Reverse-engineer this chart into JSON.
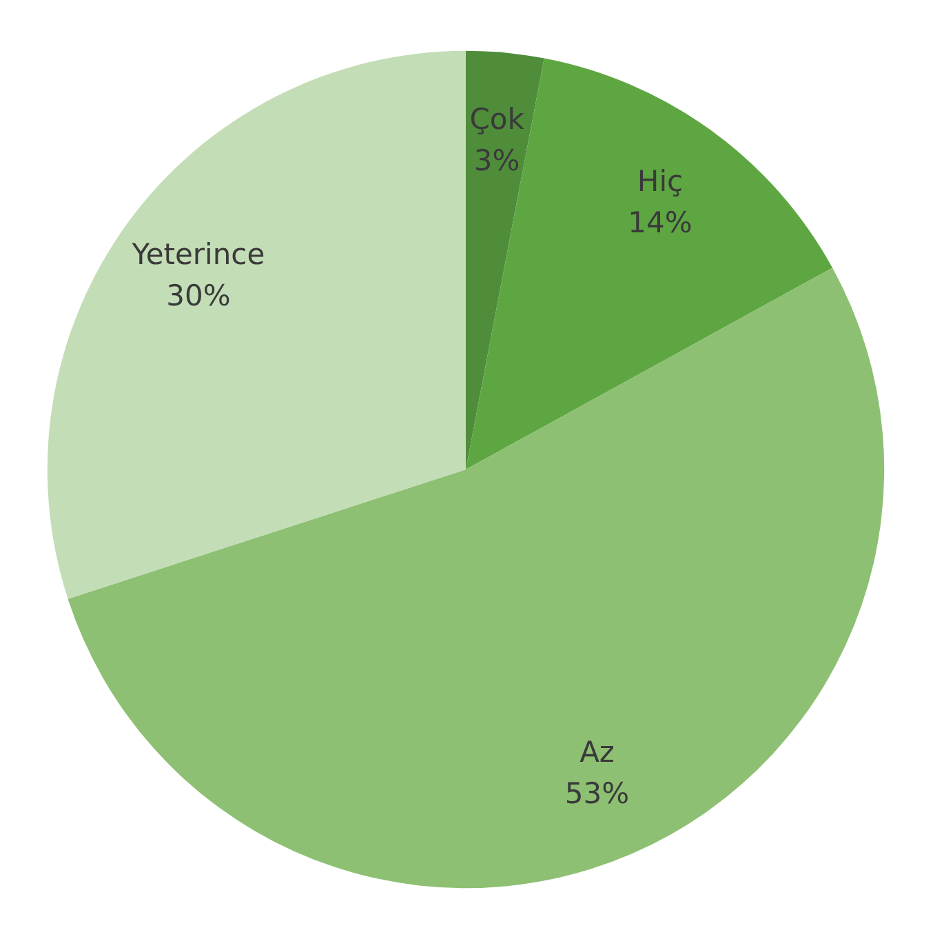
{
  "chart_data": {
    "type": "pie",
    "categories": [
      "Çok",
      "Hiç",
      "Az",
      "Yeterince"
    ],
    "values": [
      3,
      14,
      53,
      30
    ],
    "colors": [
      "#4f8d3b",
      "#5ea642",
      "#8dc073",
      "#c3ddb6"
    ],
    "value_labels": [
      "3%",
      "14%",
      "53%",
      "30%"
    ]
  }
}
